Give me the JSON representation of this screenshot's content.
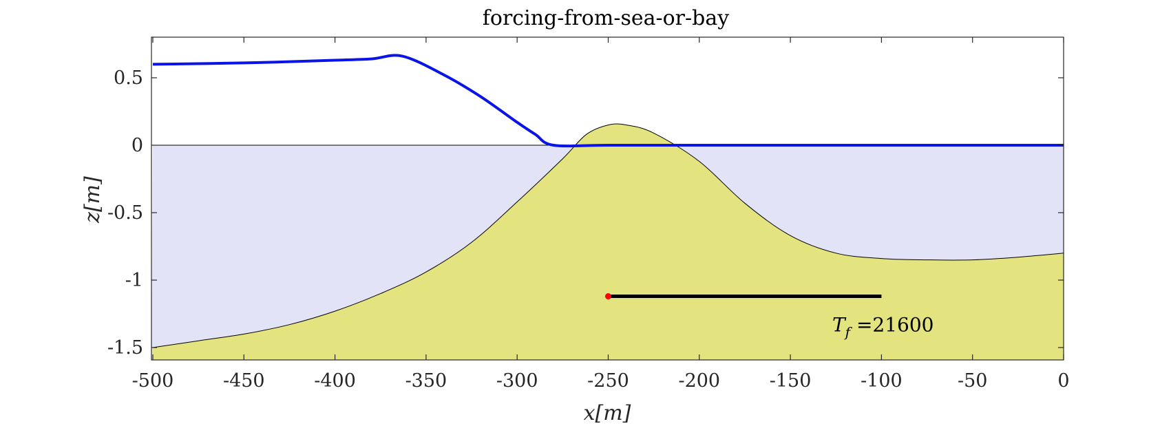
{
  "chart_data": {
    "type": "area",
    "title": "forcing-from-sea-or-bay",
    "xlabel": "x[m]",
    "ylabel": "z[m]",
    "xlim": [
      -500,
      0
    ],
    "ylim": [
      -1.6,
      0.8
    ],
    "xticks": [
      -500,
      -450,
      -400,
      -350,
      -300,
      -250,
      -200,
      -150,
      -100,
      -50,
      0
    ],
    "xtick_labels": [
      "-500",
      "-450",
      "-400",
      "-350",
      "-300",
      "-250",
      "-200",
      "-150",
      "-100",
      "-50",
      "0"
    ],
    "yticks": [
      0.5,
      0,
      -0.5,
      -1,
      -1.5
    ],
    "ytick_labels": [
      "0.5",
      "0",
      "-0.5",
      "-1",
      "-1.5"
    ],
    "grid": false,
    "colors": {
      "water": "#e3e3f8",
      "sand": "#e3e47f",
      "water_surface": "#0a14e6",
      "forcing_bar": "#000000",
      "forcing_dot": "#ff0000"
    },
    "series": [
      {
        "kind": "still_water_level",
        "x": [
          -500,
          0
        ],
        "y": [
          0,
          0
        ]
      },
      {
        "kind": "bed",
        "x": [
          -500,
          -475,
          -450,
          -425,
          -400,
          -375,
          -350,
          -325,
          -300,
          -275,
          -262,
          -250,
          -240,
          -225,
          -200,
          -175,
          -150,
          -125,
          -100,
          -75,
          -50,
          -25,
          0
        ],
        "y": [
          -1.5,
          -1.45,
          -1.4,
          -1.33,
          -1.23,
          -1.1,
          -0.94,
          -0.72,
          -0.42,
          -0.1,
          0.08,
          0.15,
          0.15,
          0.09,
          -0.12,
          -0.43,
          -0.67,
          -0.8,
          -0.84,
          -0.85,
          -0.85,
          -0.83,
          -0.8
        ]
      },
      {
        "kind": "water_surface",
        "x": [
          -500,
          -450,
          -400,
          -380,
          -363,
          -340,
          -320,
          -300,
          -290,
          -280,
          -250,
          -200,
          -150,
          -100,
          -50,
          0
        ],
        "y": [
          0.6,
          0.61,
          0.63,
          0.64,
          0.66,
          0.52,
          0.36,
          0.17,
          0.08,
          0,
          0,
          0,
          0,
          0,
          0,
          0
        ]
      }
    ],
    "forcing_bar": {
      "x_start": -250,
      "x_end": -100,
      "y": -1.12
    },
    "annotation": {
      "prefix": "T",
      "subscript": "f",
      "text": " =21600",
      "x": -127,
      "y": -1.38
    }
  }
}
